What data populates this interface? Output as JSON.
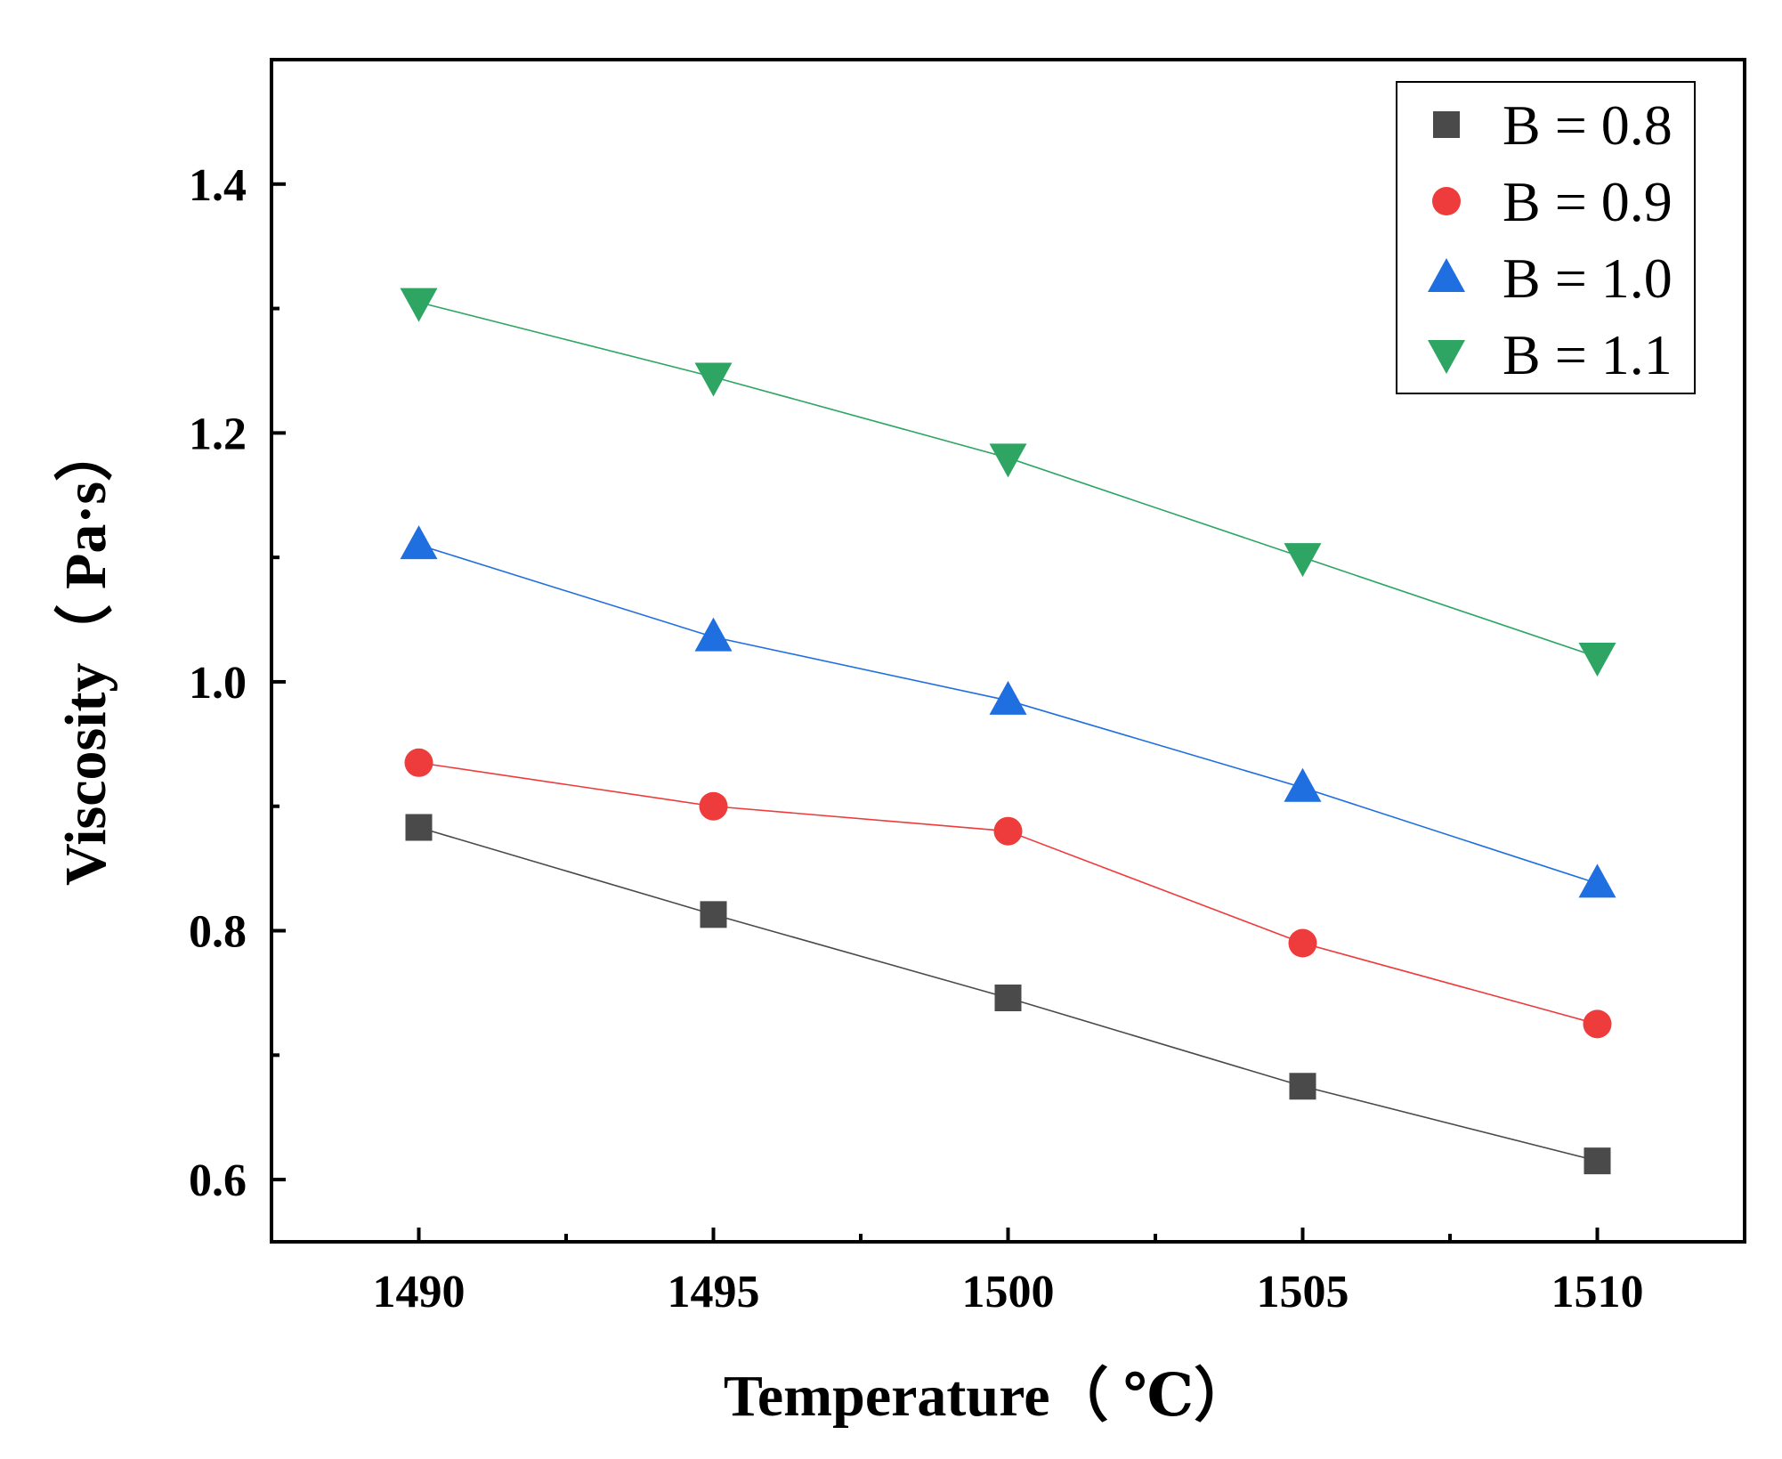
{
  "chart_data": {
    "type": "line",
    "title": "",
    "xlabel": "Temperature（ ℃）",
    "ylabel": "Viscosity（ Pa·s）",
    "x": [
      1490,
      1495,
      1500,
      1505,
      1510
    ],
    "xlim": [
      1487.5,
      1512.5
    ],
    "ylim": [
      0.55,
      1.5
    ],
    "xticks": [
      "1490",
      "1495",
      "1500",
      "1505",
      "1510"
    ],
    "yticks": [
      "0.6",
      "0.8",
      "1.0",
      "1.2",
      "1.4"
    ],
    "legend_position": "top-right",
    "grid": false,
    "series": [
      {
        "name": "B = 0.8",
        "marker": "square",
        "color": "#4a4a4a",
        "values": [
          0.883,
          0.813,
          0.746,
          0.675,
          0.615
        ]
      },
      {
        "name": "B = 0.9",
        "marker": "circle",
        "color": "#ee3b3b",
        "values": [
          0.935,
          0.9,
          0.88,
          0.79,
          0.725
        ]
      },
      {
        "name": "B = 1.0",
        "marker": "triangle-up",
        "color": "#1f6fe0",
        "values": [
          1.11,
          1.036,
          0.985,
          0.915,
          0.838
        ]
      },
      {
        "name": "B = 1.1",
        "marker": "triangle-down",
        "color": "#2ea562",
        "values": [
          1.305,
          1.245,
          1.18,
          1.1,
          1.02
        ]
      }
    ]
  }
}
